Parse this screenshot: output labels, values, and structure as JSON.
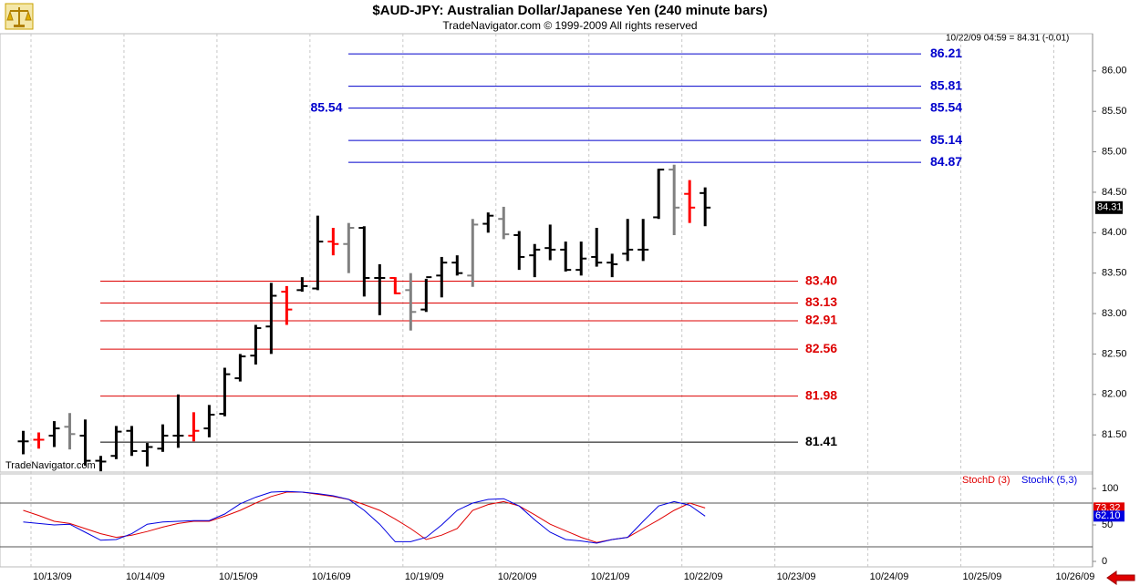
{
  "chart_data": [
    {
      "type": "ohlc",
      "title": "$AUD-JPY:  Australian Dollar/Japanese Yen  (240 minute bars)",
      "subtitle": "TradeNavigator.com © 1999-2009 All rights reserved",
      "quote": "10/22/09 04:59 = 84.31 (-0.01)",
      "watermark": "TradeNavigator.com",
      "categories": [
        null,
        null,
        null,
        null,
        null,
        null,
        null,
        null,
        null,
        null,
        null,
        null,
        null,
        null,
        null,
        null,
        null,
        null,
        null,
        null,
        null,
        null,
        null,
        null,
        null,
        null,
        null,
        null,
        null,
        null,
        null,
        null,
        null,
        null,
        null,
        null,
        null,
        null,
        null,
        null,
        null,
        null,
        null,
        null,
        null
      ],
      "open": [
        81.42,
        81.44,
        81.49,
        81.6,
        81.49,
        81.18,
        81.24,
        81.55,
        81.3,
        81.33,
        81.49,
        81.49,
        81.58,
        81.76,
        82.2,
        82.48,
        82.84,
        83.27,
        83.29,
        83.31,
        83.89,
        83.86,
        84.06,
        83.44,
        83.44,
        83.29,
        83.05,
        83.47,
        83.63,
        83.47,
        84.11,
        84.17,
        83.97,
        83.72,
        83.81,
        83.79,
        83.54,
        83.7,
        83.63,
        83.74,
        83.79,
        84.19,
        84.78,
        84.48,
        84.49
      ],
      "high": [
        81.55,
        81.53,
        81.67,
        81.77,
        81.69,
        81.24,
        81.61,
        81.61,
        81.4,
        81.63,
        82.0,
        81.78,
        81.87,
        82.33,
        82.5,
        82.86,
        83.38,
        83.34,
        83.45,
        84.21,
        84.06,
        84.12,
        84.08,
        83.61,
        83.45,
        83.5,
        83.43,
        83.7,
        83.72,
        84.17,
        84.25,
        84.32,
        84.02,
        83.86,
        84.1,
        83.89,
        83.89,
        84.06,
        83.74,
        84.17,
        84.17,
        84.79,
        84.84,
        84.65,
        84.56
      ],
      "low": [
        81.26,
        81.33,
        81.35,
        81.32,
        81.12,
        81.05,
        81.2,
        81.24,
        81.11,
        81.29,
        81.34,
        81.42,
        81.47,
        81.73,
        82.16,
        82.37,
        82.5,
        82.86,
        83.27,
        83.29,
        83.72,
        83.5,
        83.21,
        82.98,
        83.24,
        82.79,
        83.02,
        83.2,
        83.47,
        83.33,
        84.0,
        83.92,
        83.54,
        83.45,
        83.66,
        83.52,
        83.47,
        83.58,
        83.45,
        83.65,
        83.65,
        84.17,
        83.97,
        84.12,
        84.08
      ],
      "close": [
        81.42,
        81.44,
        81.58,
        81.51,
        81.18,
        81.17,
        81.54,
        81.3,
        81.35,
        81.49,
        81.49,
        81.55,
        81.75,
        82.25,
        82.47,
        82.82,
        83.22,
        83.05,
        83.34,
        83.89,
        83.86,
        84.06,
        83.44,
        83.44,
        83.25,
        83.02,
        83.45,
        83.63,
        83.5,
        84.1,
        84.21,
        83.98,
        83.7,
        83.79,
        83.79,
        83.54,
        83.68,
        83.63,
        83.61,
        83.79,
        83.79,
        84.78,
        84.31,
        84.31,
        84.31
      ],
      "colors": [
        "#000000",
        "#ff0000",
        "#000000",
        "#808080",
        "#000000",
        "#000000",
        "#000000",
        "#000000",
        "#000000",
        "#000000",
        "#000000",
        "#ff0000",
        "#000000",
        "#000000",
        "#000000",
        "#000000",
        "#000000",
        "#ff0000",
        "#000000",
        "#000000",
        "#ff0000",
        "#808080",
        "#000000",
        "#000000",
        "#ff0000",
        "#808080",
        "#000000",
        "#000000",
        "#000000",
        "#808080",
        "#000000",
        "#808080",
        "#000000",
        "#000000",
        "#000000",
        "#000000",
        "#000000",
        "#000000",
        "#000000",
        "#000000",
        "#000000",
        "#000000",
        "#808080",
        "#ff0000",
        "#000000"
      ],
      "xlim": [
        -1.5,
        69
      ],
      "xticks": [
        {
          "value": 0.5,
          "label": "10/13/09"
        },
        {
          "value": 6.5,
          "label": "10/14/09"
        },
        {
          "value": 12.5,
          "label": "10/15/09"
        },
        {
          "value": 18.5,
          "label": "10/16/09"
        },
        {
          "value": 24.5,
          "label": "10/19/09"
        },
        {
          "value": 30.5,
          "label": "10/20/09"
        },
        {
          "value": 36.5,
          "label": "10/21/09"
        },
        {
          "value": 42.5,
          "label": "10/22/09"
        },
        {
          "value": 48.5,
          "label": "10/23/09"
        },
        {
          "value": 54.5,
          "label": "10/24/09"
        },
        {
          "value": 60.5,
          "label": "10/25/09"
        },
        {
          "value": 66.5,
          "label": "10/26/09"
        }
      ],
      "ylim": [
        81.04,
        86.46
      ],
      "yticks": [
        {
          "value": 81.5,
          "label": "81.50"
        },
        {
          "value": 82,
          "label": "82.00"
        },
        {
          "value": 82.5,
          "label": "82.50"
        },
        {
          "value": 83,
          "label": "83.00"
        },
        {
          "value": 83.5,
          "label": "83.50"
        },
        {
          "value": 84,
          "label": "84.00"
        },
        {
          "value": 84.5,
          "label": "84.50"
        },
        {
          "value": 85,
          "label": "85.00"
        },
        {
          "value": 85.5,
          "label": "85.50"
        },
        {
          "value": 86,
          "label": "86.00"
        }
      ],
      "levels_upper": [
        {
          "value": 86.21,
          "label": "86.21",
          "color": "#0000cc"
        },
        {
          "value": 85.81,
          "label": "85.81",
          "color": "#0000cc"
        },
        {
          "value": 85.54,
          "label": "85.54",
          "color": "#0000cc",
          "left_label": true
        },
        {
          "value": 85.14,
          "label": "85.14",
          "color": "#0000cc"
        },
        {
          "value": 84.87,
          "label": "84.87",
          "color": "#0000cc"
        }
      ],
      "levels_lower": [
        {
          "value": 83.4,
          "label": "83.40",
          "color": "#dd0000"
        },
        {
          "value": 83.13,
          "label": "83.13",
          "color": "#dd0000"
        },
        {
          "value": 82.91,
          "label": "82.91",
          "color": "#dd0000"
        },
        {
          "value": 82.56,
          "label": "82.56",
          "color": "#dd0000"
        },
        {
          "value": 81.98,
          "label": "81.98",
          "color": "#dd0000"
        },
        {
          "value": 81.41,
          "label": "81.41",
          "color": "#000000"
        }
      ]
    },
    {
      "type": "line",
      "ylim": [
        -7.5,
        120
      ],
      "yticks": [
        0,
        50,
        100
      ],
      "hlines": [
        20,
        80
      ],
      "series": [
        {
          "name": "StochD (3)",
          "color": "#e00000",
          "values": [
            70,
            63,
            55,
            52,
            45,
            38,
            33,
            36,
            41,
            47,
            52,
            55,
            55,
            62,
            70,
            80,
            89,
            95,
            95,
            92,
            89,
            85,
            78,
            70,
            58,
            45,
            30,
            36,
            45,
            70,
            78,
            82,
            76,
            64,
            51,
            42,
            33,
            26,
            30,
            33,
            45,
            57,
            70,
            80,
            73.32
          ]
        },
        {
          "name": "StochK (5,3)",
          "color": "#0000e0",
          "values": [
            54,
            52,
            50,
            51,
            40,
            29,
            30,
            38,
            51,
            54,
            55,
            56,
            56,
            65,
            79,
            88,
            95,
            96,
            95,
            93,
            90,
            85,
            70,
            51,
            27,
            27,
            33,
            50,
            70,
            80,
            85,
            86,
            76,
            57,
            40,
            30,
            28,
            25,
            30,
            33,
            55,
            76,
            82,
            77,
            62.1
          ],
          "value_labels": [
            null,
            null,
            null,
            null,
            null,
            null,
            null,
            null,
            null,
            null,
            null,
            null,
            null,
            null,
            null,
            null,
            null,
            null,
            null,
            null,
            null,
            null,
            null,
            null,
            null,
            null,
            null,
            null,
            null,
            null,
            null,
            null,
            null,
            null,
            null,
            null,
            null,
            null,
            null,
            null,
            null,
            null,
            null,
            null,
            "62.10"
          ]
        }
      ]
    }
  ]
}
